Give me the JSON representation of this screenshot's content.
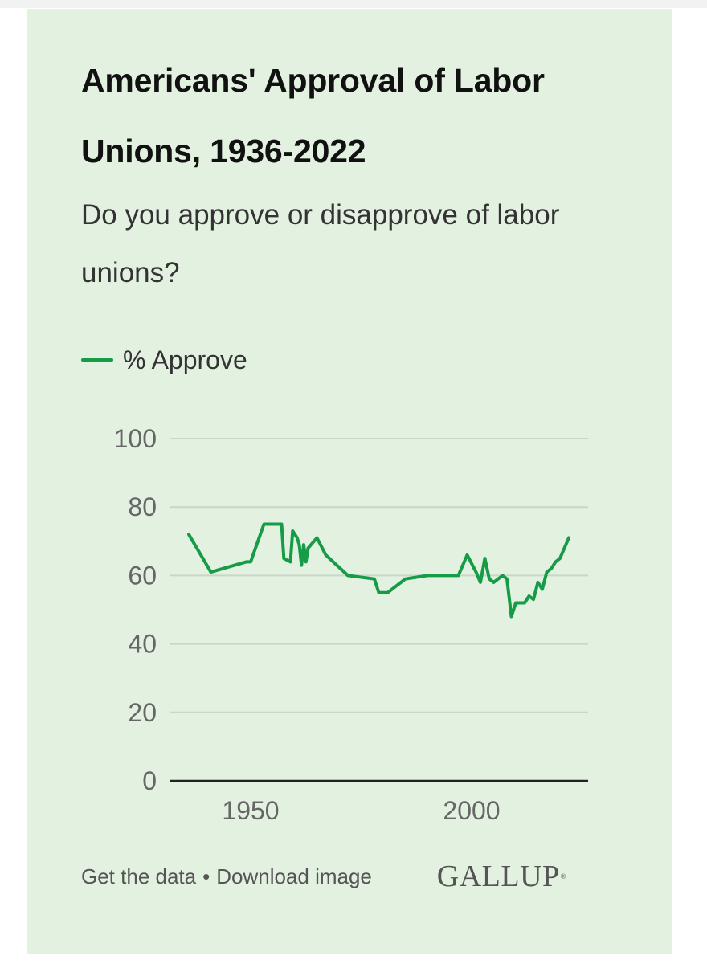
{
  "header": {
    "title": "Americans' Approval of Labor Unions, 1936-2022",
    "subtitle": "Do you approve or disapprove of labor unions?"
  },
  "footer": {
    "get_data": "Get the data",
    "separator": "•",
    "download": "Download image",
    "brand": "GALLUP",
    "brand_mark": "®"
  },
  "colors": {
    "series": "#169b46",
    "card_background": "#e3f1e1",
    "gridline": "#c9d6c8",
    "axis": "#222222"
  },
  "chart_data": {
    "type": "line",
    "ylim": [
      0,
      100
    ],
    "xlim": [
      1936,
      2022
    ],
    "yticks": [
      0,
      20,
      40,
      60,
      80,
      100
    ],
    "xticks": [
      1950,
      2000
    ],
    "grid": true,
    "legend_position": "top-left",
    "series": [
      {
        "name": "% Approve",
        "points": [
          [
            1936,
            72
          ],
          [
            1941,
            61
          ],
          [
            1949,
            64
          ],
          [
            1950,
            64
          ],
          [
            1953,
            75
          ],
          [
            1957,
            75
          ],
          [
            1957.5,
            65
          ],
          [
            1959,
            64
          ],
          [
            1959.5,
            73
          ],
          [
            1960.5,
            71
          ],
          [
            1961,
            69
          ],
          [
            1961.5,
            63
          ],
          [
            1962,
            69
          ],
          [
            1962.5,
            64
          ],
          [
            1963,
            68
          ],
          [
            1965,
            71
          ],
          [
            1967,
            66
          ],
          [
            1972,
            60
          ],
          [
            1978,
            59
          ],
          [
            1979,
            55
          ],
          [
            1981,
            55
          ],
          [
            1985,
            59
          ],
          [
            1990,
            60
          ],
          [
            1997,
            60
          ],
          [
            1999,
            66
          ],
          [
            2001,
            61
          ],
          [
            2002,
            58
          ],
          [
            2003,
            65
          ],
          [
            2004,
            59
          ],
          [
            2005,
            58
          ],
          [
            2006,
            59
          ],
          [
            2007,
            60
          ],
          [
            2008,
            59
          ],
          [
            2009,
            48
          ],
          [
            2010,
            52
          ],
          [
            2011,
            52
          ],
          [
            2012,
            52
          ],
          [
            2013,
            54
          ],
          [
            2014,
            53
          ],
          [
            2015,
            58
          ],
          [
            2016,
            56
          ],
          [
            2017,
            61
          ],
          [
            2018,
            62
          ],
          [
            2019,
            64
          ],
          [
            2020,
            65
          ],
          [
            2021,
            68
          ],
          [
            2022,
            71
          ]
        ]
      }
    ]
  }
}
